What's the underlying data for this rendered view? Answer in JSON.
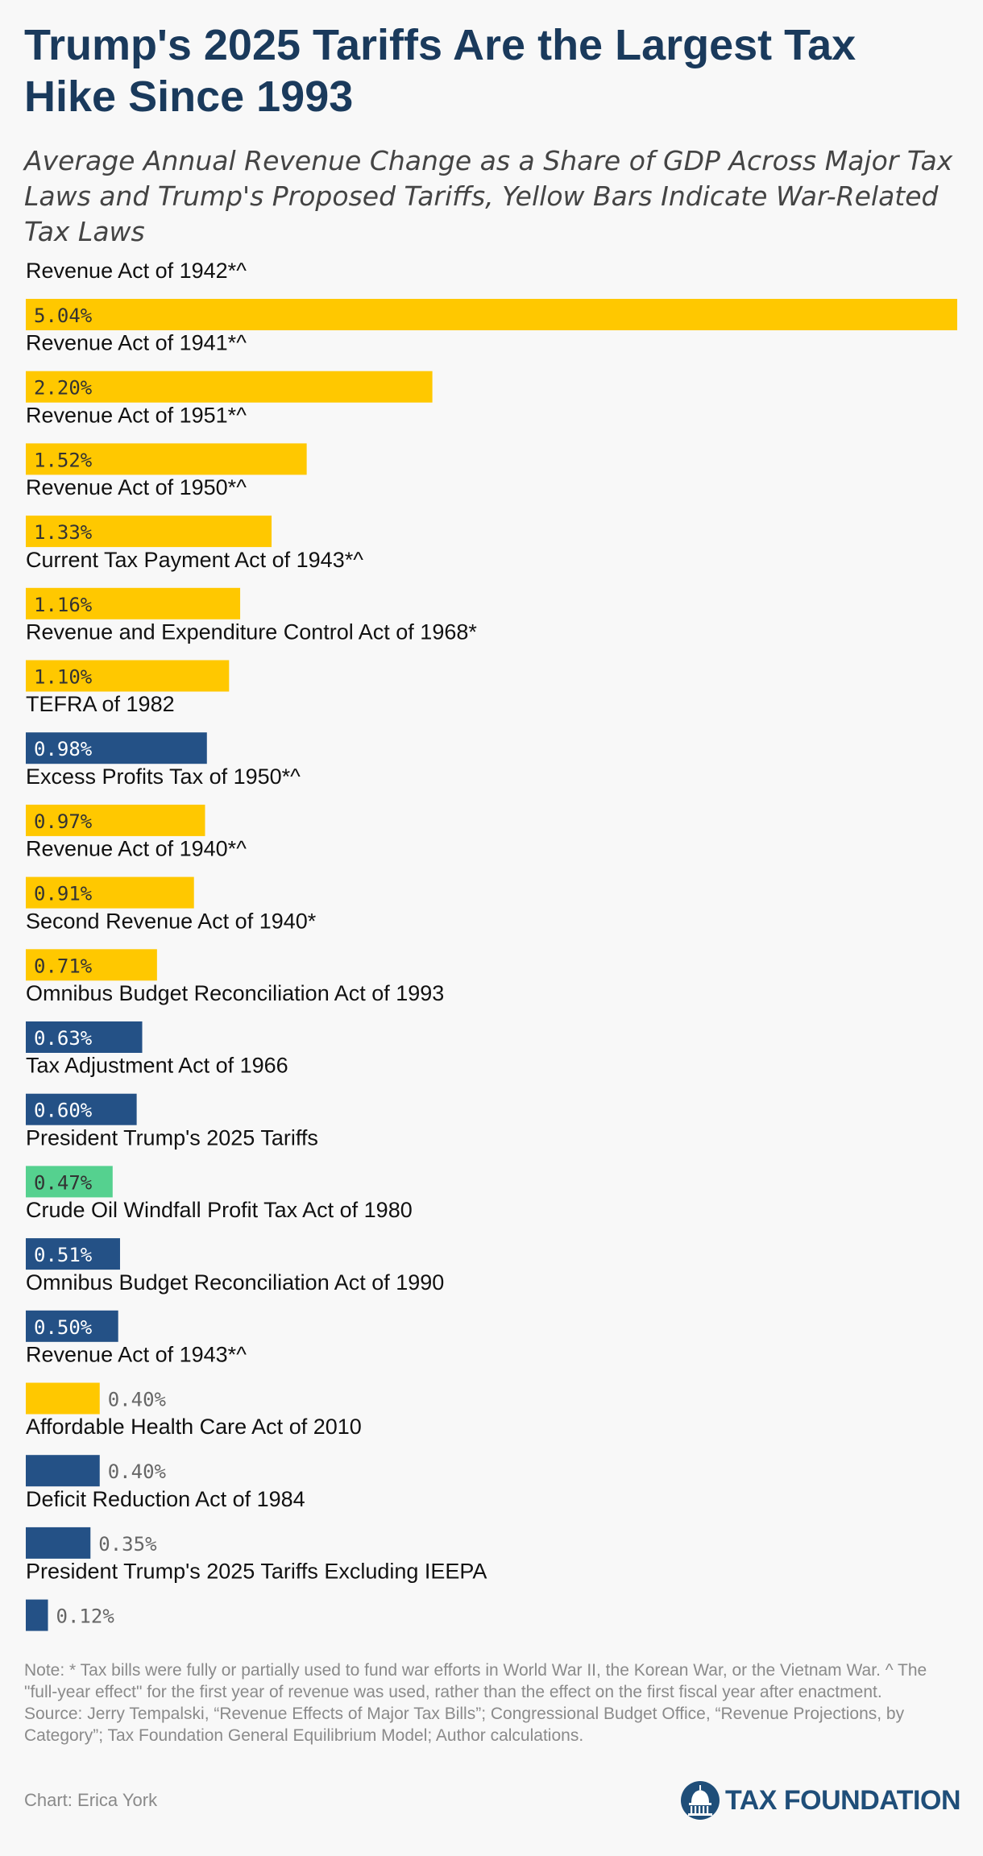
{
  "title": "Trump's 2025 Tariffs Are the Largest Tax Hike Since 1993",
  "subtitle": "Average Annual Revenue Change as a Share of GDP Across Major Tax Laws and Trump's Proposed Tariffs, Yellow Bars Indicate War-Related Tax Laws",
  "colors": {
    "war": "#ffc800",
    "other": "#245186",
    "tariffs": "#55d18f",
    "label_inside_dark": "#333333",
    "label_inside_light": "#ffffff",
    "label_outside": "#666666",
    "title": "#1a3a5c"
  },
  "chart_data": {
    "type": "bar",
    "orientation": "horizontal",
    "title": "Trump's 2025 Tariffs Are the Largest Tax Hike Since 1993",
    "subtitle": "Average Annual Revenue Change as a Share of GDP Across Major Tax Laws and Trump's Proposed Tariffs, Yellow Bars Indicate War-Related Tax Laws",
    "xlim": [
      0,
      5.04
    ],
    "grid": false,
    "categories": [
      "Revenue Act of 1942*^",
      "Revenue Act of 1941*^",
      "Revenue Act of 1951*^",
      "Revenue Act of 1950*^",
      "Current Tax Payment Act of 1943*^",
      "Revenue and Expenditure Control Act of 1968*",
      "TEFRA of 1982",
      "Excess Profits Tax of 1950*^",
      "Revenue Act of 1940*^",
      "Second Revenue Act of 1940*",
      "Omnibus Budget Reconciliation Act of 1993",
      "Tax Adjustment Act of 1966",
      "President Trump's 2025 Tariffs",
      "Crude Oil Windfall Profit Tax Act of 1980",
      "Omnibus Budget Reconciliation Act of 1990",
      "Revenue Act of 1943*^",
      "Affordable Health Care Act of 2010",
      "Deficit Reduction Act of 1984",
      "President Trump's 2025 Tariffs Excluding IEEPA"
    ],
    "values": [
      5.04,
      2.2,
      1.52,
      1.33,
      1.16,
      1.1,
      0.98,
      0.97,
      0.91,
      0.71,
      0.63,
      0.6,
      0.47,
      0.51,
      0.5,
      0.4,
      0.4,
      0.35,
      0.12
    ],
    "value_labels": [
      "5.04%",
      "2.20%",
      "1.52%",
      "1.33%",
      "1.16%",
      "1.10%",
      "0.98%",
      "0.97%",
      "0.91%",
      "0.71%",
      "0.63%",
      "0.60%",
      "0.47%",
      "0.51%",
      "0.50%",
      "0.40%",
      "0.40%",
      "0.35%",
      "0.12%"
    ],
    "groups": [
      "war",
      "war",
      "war",
      "war",
      "war",
      "war",
      "other",
      "war",
      "war",
      "war",
      "other",
      "other",
      "tariffs",
      "other",
      "other",
      "war",
      "other",
      "other",
      "other"
    ]
  },
  "footer": {
    "note": "Note: * Tax bills were fully or partially used to fund war efforts in World War II, the Korean War, or the Vietnam War. ^ The \"full-year effect\" for the first year of revenue was used, rather than the effect on the first fiscal year after enactment.",
    "source": "Source: Jerry Tempalski, “Revenue Effects of Major Tax Bills”; Congressional Budget Office, “Revenue Projections, by Category”; Tax Foundation General Equilibrium Model; Author calculations.",
    "byline": "Chart: Erica York",
    "logo_text": "TAX FOUNDATION",
    "logo_icon": "capitol-dome-icon"
  }
}
